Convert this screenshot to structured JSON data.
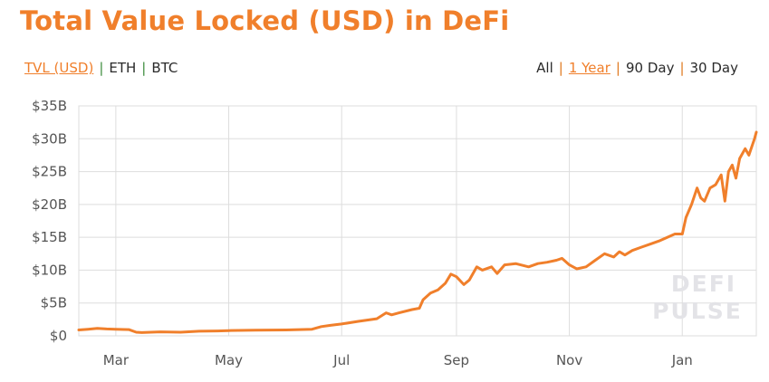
{
  "title": "Total Value Locked (USD) in DeFi",
  "metric_tabs": [
    {
      "label": "TVL (USD)",
      "active": true
    },
    {
      "label": "ETH",
      "active": false
    },
    {
      "label": "BTC",
      "active": false
    }
  ],
  "range_tabs": [
    {
      "label": "All",
      "active": false
    },
    {
      "label": "1 Year",
      "active": true
    },
    {
      "label": "90 Day",
      "active": false
    },
    {
      "label": "30 Day",
      "active": false
    }
  ],
  "separator": "|",
  "colors": {
    "accent": "#f07f2b",
    "separator_metric": "#3c8c3c",
    "separator_range": "#e07a20",
    "grid": "#dddddd",
    "watermark": "#e3e3e7"
  },
  "watermark": {
    "line1": "DEFI",
    "line2": "PULSE"
  },
  "chart_data": {
    "type": "line",
    "title": "Total Value Locked (USD) in DeFi",
    "xlabel": "",
    "ylabel": "",
    "ylim": [
      0,
      35
    ],
    "y_ticks": [
      {
        "value": 0,
        "label": "$0"
      },
      {
        "value": 5,
        "label": "$5B"
      },
      {
        "value": 10,
        "label": "$10B"
      },
      {
        "value": 15,
        "label": "$15B"
      },
      {
        "value": 20,
        "label": "$20B"
      },
      {
        "value": 25,
        "label": "$25B"
      },
      {
        "value": 30,
        "label": "$30B"
      },
      {
        "value": 35,
        "label": "$35B"
      }
    ],
    "xlim": [
      "2020-02-10",
      "2021-02-10"
    ],
    "x_ticks": [
      {
        "date": "2020-03-01",
        "label": "Mar"
      },
      {
        "date": "2020-05-01",
        "label": "May"
      },
      {
        "date": "2020-07-01",
        "label": "Jul"
      },
      {
        "date": "2020-09-01",
        "label": "Sep"
      },
      {
        "date": "2020-11-01",
        "label": "Nov"
      },
      {
        "date": "2021-01-01",
        "label": "Jan"
      }
    ],
    "grid": true,
    "series": [
      {
        "color": "#f07f2b",
        "points": [
          [
            "2020-02-10",
            0.9
          ],
          [
            "2020-02-15",
            1.0
          ],
          [
            "2020-02-20",
            1.15
          ],
          [
            "2020-02-25",
            1.05
          ],
          [
            "2020-03-01",
            1.0
          ],
          [
            "2020-03-08",
            0.95
          ],
          [
            "2020-03-12",
            0.55
          ],
          [
            "2020-03-15",
            0.5
          ],
          [
            "2020-03-25",
            0.6
          ],
          [
            "2020-04-05",
            0.55
          ],
          [
            "2020-04-15",
            0.7
          ],
          [
            "2020-04-25",
            0.75
          ],
          [
            "2020-05-01",
            0.8
          ],
          [
            "2020-05-15",
            0.85
          ],
          [
            "2020-06-01",
            0.9
          ],
          [
            "2020-06-15",
            1.0
          ],
          [
            "2020-06-20",
            1.4
          ],
          [
            "2020-06-25",
            1.6
          ],
          [
            "2020-07-01",
            1.8
          ],
          [
            "2020-07-10",
            2.2
          ],
          [
            "2020-07-20",
            2.6
          ],
          [
            "2020-07-25",
            3.5
          ],
          [
            "2020-07-28",
            3.2
          ],
          [
            "2020-08-01",
            3.5
          ],
          [
            "2020-08-08",
            4.0
          ],
          [
            "2020-08-12",
            4.2
          ],
          [
            "2020-08-14",
            5.5
          ],
          [
            "2020-08-18",
            6.5
          ],
          [
            "2020-08-22",
            7.0
          ],
          [
            "2020-08-26",
            8.0
          ],
          [
            "2020-08-29",
            9.4
          ],
          [
            "2020-09-01",
            9.0
          ],
          [
            "2020-09-05",
            7.8
          ],
          [
            "2020-09-08",
            8.5
          ],
          [
            "2020-09-12",
            10.5
          ],
          [
            "2020-09-15",
            10.0
          ],
          [
            "2020-09-20",
            10.5
          ],
          [
            "2020-09-23",
            9.5
          ],
          [
            "2020-09-27",
            10.8
          ],
          [
            "2020-10-03",
            11.0
          ],
          [
            "2020-10-10",
            10.5
          ],
          [
            "2020-10-15",
            11.0
          ],
          [
            "2020-10-20",
            11.2
          ],
          [
            "2020-10-25",
            11.5
          ],
          [
            "2020-10-28",
            11.8
          ],
          [
            "2020-11-01",
            10.8
          ],
          [
            "2020-11-05",
            10.2
          ],
          [
            "2020-11-10",
            10.5
          ],
          [
            "2020-11-15",
            11.5
          ],
          [
            "2020-11-20",
            12.5
          ],
          [
            "2020-11-25",
            12.0
          ],
          [
            "2020-11-28",
            12.8
          ],
          [
            "2020-12-01",
            12.3
          ],
          [
            "2020-12-05",
            13.0
          ],
          [
            "2020-12-10",
            13.5
          ],
          [
            "2020-12-15",
            14.0
          ],
          [
            "2020-12-20",
            14.5
          ],
          [
            "2020-12-24",
            15.0
          ],
          [
            "2020-12-28",
            15.5
          ],
          [
            "2021-01-01",
            15.5
          ],
          [
            "2021-01-03",
            18.0
          ],
          [
            "2021-01-06",
            20.0
          ],
          [
            "2021-01-09",
            22.5
          ],
          [
            "2021-01-11",
            21.0
          ],
          [
            "2021-01-13",
            20.5
          ],
          [
            "2021-01-16",
            22.5
          ],
          [
            "2021-01-19",
            23.0
          ],
          [
            "2021-01-22",
            24.5
          ],
          [
            "2021-01-24",
            20.5
          ],
          [
            "2021-01-26",
            25.0
          ],
          [
            "2021-01-28",
            26.0
          ],
          [
            "2021-01-30",
            24.0
          ],
          [
            "2021-02-01",
            27.0
          ],
          [
            "2021-02-04",
            28.5
          ],
          [
            "2021-02-06",
            27.5
          ],
          [
            "2021-02-09",
            30.0
          ],
          [
            "2021-02-10",
            31.0
          ]
        ]
      }
    ]
  }
}
